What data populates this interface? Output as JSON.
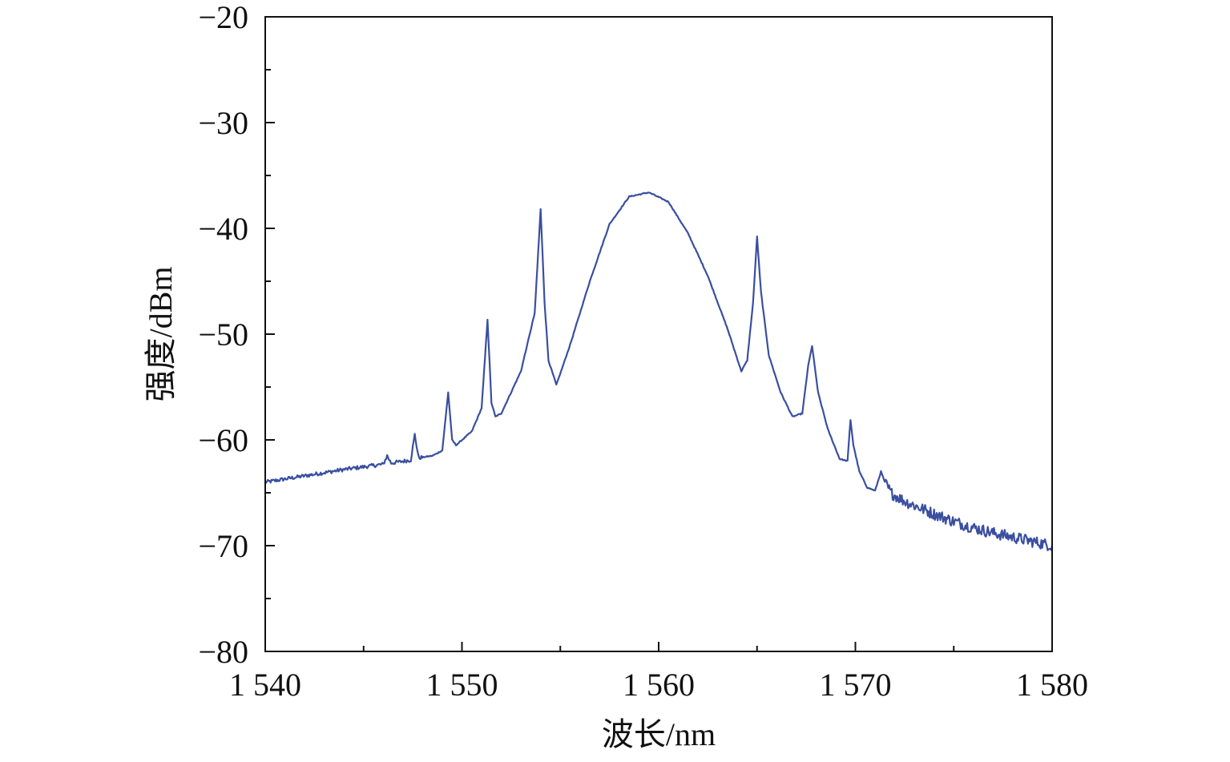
{
  "chart_data": {
    "type": "line",
    "title": "",
    "xlabel": "波长/nm",
    "ylabel": "强度/dBm",
    "xlim": [
      1540,
      1580
    ],
    "ylim": [
      -80,
      -20
    ],
    "x_ticks": [
      1540,
      1550,
      1560,
      1570,
      1580
    ],
    "x_tick_labels": [
      "1 540",
      "1 550",
      "1 560",
      "1 570",
      "1 580"
    ],
    "y_ticks": [
      -20,
      -30,
      -40,
      -50,
      -60,
      -70,
      -80
    ],
    "y_tick_labels": [
      "−20",
      "−30",
      "−40",
      "−50",
      "−60",
      "−70",
      "−80"
    ],
    "x_minor_step": 5,
    "y_minor_step": 5,
    "grid": false,
    "legend": "none",
    "series": [
      {
        "color": "#3a4fa0",
        "x": [
          1540.0,
          1542.0,
          1544.0,
          1546.0,
          1546.2,
          1546.4,
          1547.4,
          1547.6,
          1547.8,
          1548.5,
          1549.0,
          1549.3,
          1549.5,
          1549.7,
          1550.5,
          1551.0,
          1551.3,
          1551.5,
          1551.7,
          1552.0,
          1553.0,
          1553.7,
          1554.0,
          1554.2,
          1554.4,
          1554.8,
          1555.5,
          1556.5,
          1557.5,
          1558.5,
          1559.5,
          1560.5,
          1561.5,
          1562.5,
          1563.5,
          1564.2,
          1564.5,
          1564.8,
          1565.0,
          1565.2,
          1565.6,
          1566.2,
          1566.8,
          1567.3,
          1567.6,
          1567.8,
          1568.1,
          1568.6,
          1569.2,
          1569.6,
          1569.75,
          1569.9,
          1570.2,
          1570.6,
          1571.0,
          1571.3,
          1571.5,
          1571.8,
          1572.5,
          1573.0,
          1574.0,
          1575.0,
          1576.0,
          1577.0,
          1578.0,
          1579.0,
          1580.0
        ],
        "y": [
          -64.0,
          -63.4,
          -62.8,
          -62.3,
          -61.5,
          -62.2,
          -61.9,
          -59.5,
          -61.7,
          -61.5,
          -61.0,
          -55.5,
          -60.0,
          -60.5,
          -59.2,
          -57.0,
          -48.6,
          -56.5,
          -57.8,
          -57.5,
          -53.5,
          -48.0,
          -38.2,
          -47.0,
          -52.5,
          -54.8,
          -51.0,
          -45.0,
          -39.6,
          -37.0,
          -36.6,
          -37.5,
          -40.5,
          -44.5,
          -49.5,
          -53.5,
          -52.5,
          -47.0,
          -40.8,
          -46.0,
          -52.0,
          -55.5,
          -57.8,
          -57.5,
          -53.0,
          -51.1,
          -55.5,
          -59.0,
          -61.8,
          -62.0,
          -58.1,
          -60.5,
          -63.0,
          -64.5,
          -64.8,
          -63.0,
          -64.0,
          -65.0,
          -65.8,
          -66.2,
          -67.0,
          -67.7,
          -68.3,
          -68.8,
          -69.2,
          -69.6,
          -70.0
        ]
      }
    ]
  }
}
